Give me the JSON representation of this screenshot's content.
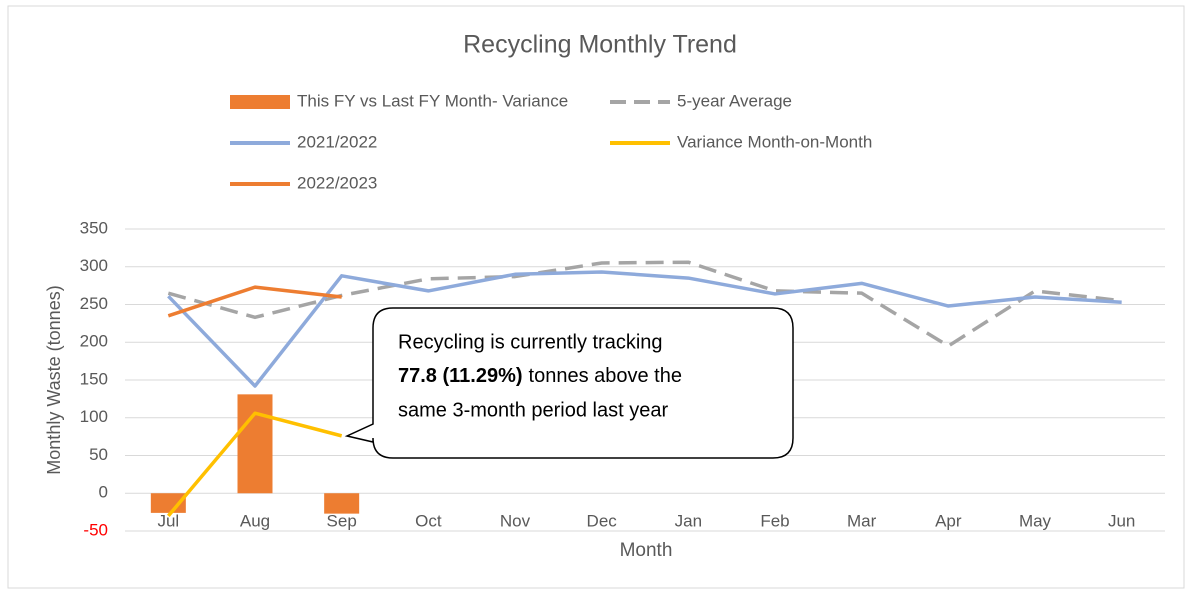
{
  "chart_data": {
    "type": "combo",
    "title": "Recycling Monthly Trend",
    "x_label": "Month",
    "y_label": "Monthly Waste (tonnes)",
    "categories": [
      "Jul",
      "Aug",
      "Sep",
      "Oct",
      "Nov",
      "Dec",
      "Jan",
      "Feb",
      "Mar",
      "Apr",
      "May",
      "Jun"
    ],
    "ylim": [
      -50,
      350
    ],
    "yticks": [
      -50,
      0,
      50,
      100,
      150,
      200,
      250,
      300,
      350
    ],
    "grid": true,
    "negative_tick_color": "#ff0000",
    "series": [
      {
        "name": "This FY vs Last FY Month- Variance",
        "kind": "bar",
        "color": "#ed7d31",
        "values": [
          -26,
          131,
          -27,
          null,
          null,
          null,
          null,
          null,
          null,
          null,
          null,
          null
        ]
      },
      {
        "name": "5-year Average",
        "kind": "line",
        "dashed": true,
        "color": "#a5a5a5",
        "values": [
          265,
          233,
          262,
          284,
          287,
          305,
          306,
          268,
          265,
          195,
          268,
          255
        ]
      },
      {
        "name": "2021/2022",
        "kind": "line",
        "color": "#8eaadb",
        "values": [
          261,
          142,
          288,
          268,
          290,
          293,
          285,
          264,
          278,
          248,
          260,
          253
        ]
      },
      {
        "name": "Variance Month-on-Month",
        "kind": "line",
        "color": "#ffc000",
        "values": [
          -30,
          106,
          76,
          null,
          null,
          null,
          null,
          null,
          null,
          null,
          null,
          null
        ]
      },
      {
        "name": "2022/2023",
        "kind": "line",
        "color": "#ed7d31",
        "values": [
          235,
          273,
          260,
          null,
          null,
          null,
          null,
          null,
          null,
          null,
          null,
          null
        ]
      }
    ],
    "annotation": {
      "line1": "Recycling is currently tracking",
      "bold": "77.8 (11.29%)",
      "line2_rest": "tonnes above the",
      "line3": "same 3-month period last year"
    }
  }
}
